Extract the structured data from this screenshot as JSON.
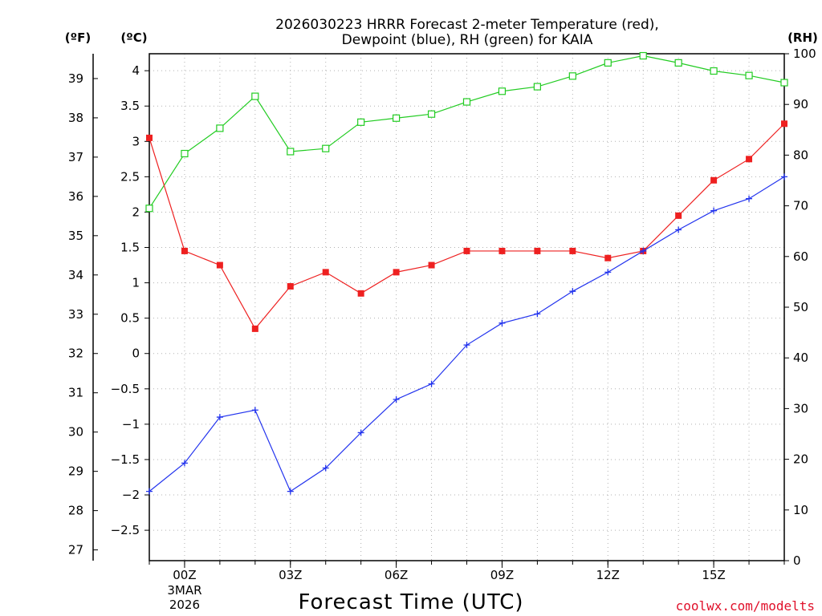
{
  "chart_data": {
    "type": "line",
    "title_line1": "2026030223 HRRR Forecast 2-meter Temperature (red),",
    "title_line2": "Dewpoint (blue), RH (green) for KAIA",
    "xlabel": "Forecast Time (UTC)",
    "unit_labels": {
      "fahrenheit": "(ºF)",
      "celsius": "(ºC)",
      "rh": "(RH)"
    },
    "x_hours": [
      -1,
      0,
      1,
      2,
      3,
      4,
      5,
      6,
      7,
      8,
      9,
      10,
      11,
      12,
      13,
      14,
      15,
      16,
      17
    ],
    "x_ticks": [
      {
        "hour": 0,
        "label": "00Z",
        "date1": "3MAR",
        "date2": "2026"
      },
      {
        "hour": 3,
        "label": "03Z"
      },
      {
        "hour": 6,
        "label": "06Z"
      },
      {
        "hour": 9,
        "label": "09Z"
      },
      {
        "hour": 12,
        "label": "12Z"
      },
      {
        "hour": 15,
        "label": "15Z"
      }
    ],
    "xlim": [
      -1,
      17
    ],
    "celsius_axis": {
      "ylim": [
        -2.93,
        4.24
      ],
      "ticks": [
        "4",
        "3.5",
        "3",
        "2.5",
        "2",
        "1.5",
        "1",
        "0.5",
        "0",
        "-0.5",
        "-1",
        "-1.5",
        "-2",
        "-2.5"
      ]
    },
    "fahrenheit_axis": {
      "ticks": [
        "39",
        "38",
        "37",
        "36",
        "35",
        "34",
        "33",
        "32",
        "31",
        "30",
        "29",
        "28",
        "27"
      ]
    },
    "rh_axis": {
      "ylim": [
        0,
        100
      ],
      "ticks": [
        "100",
        "90",
        "80",
        "70",
        "60",
        "50",
        "40",
        "30",
        "20",
        "10",
        "0"
      ]
    },
    "series": [
      {
        "name": "Temperature",
        "axis": "celsius",
        "color": "#ee2020",
        "marker": "filled-square",
        "values": [
          3.05,
          1.45,
          1.25,
          0.35,
          0.95,
          1.15,
          0.85,
          1.15,
          1.25,
          1.45,
          1.45,
          1.45,
          1.45,
          1.35,
          1.45,
          1.95,
          2.45,
          2.75,
          3.25
        ]
      },
      {
        "name": "Dewpoint",
        "axis": "celsius",
        "color": "#2233ee",
        "marker": "plus",
        "values": [
          -1.95,
          -1.55,
          -0.9,
          -0.8,
          -1.95,
          -1.62,
          -1.12,
          -0.65,
          -0.43,
          0.12,
          0.43,
          0.56,
          0.88,
          1.15,
          1.45,
          1.75,
          2.02,
          2.19,
          2.5
        ]
      },
      {
        "name": "RH",
        "axis": "rh",
        "color": "#22cc22",
        "marker": "open-square",
        "values": [
          69.5,
          80.3,
          85.3,
          91.6,
          80.7,
          81.3,
          86.5,
          87.3,
          88.1,
          90.5,
          92.6,
          93.5,
          95.6,
          98.2,
          99.6,
          98.2,
          96.6,
          95.7,
          94.3
        ]
      }
    ]
  },
  "credit": "coolwx.com/modelts"
}
